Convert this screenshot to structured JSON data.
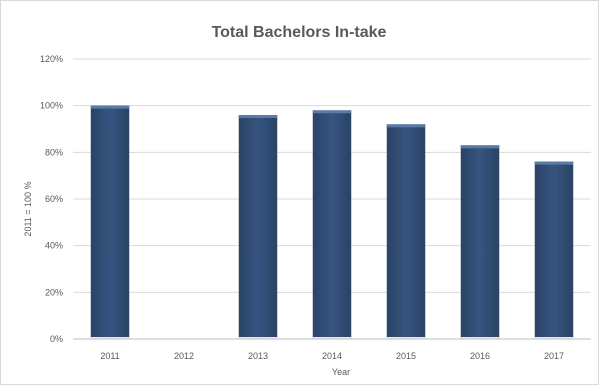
{
  "chart_data": {
    "type": "bar",
    "title": "Total Bachelors In-take",
    "xlabel": "Year",
    "ylabel": "2011 = 100 %",
    "categories": [
      "2011",
      "2012",
      "2013",
      "2014",
      "2015",
      "2016",
      "2017"
    ],
    "values": [
      100,
      null,
      96,
      98,
      92,
      83,
      76
    ],
    "ylim": [
      0,
      120
    ],
    "yticks": [
      0,
      20,
      40,
      60,
      80,
      100,
      120
    ],
    "ytick_labels": [
      "0%",
      "20%",
      "40%",
      "60%",
      "80%",
      "100%",
      "120%"
    ],
    "grid": true,
    "legend": "none",
    "bar_color": "#2e4a70",
    "bar_top_color": "#5a7aa6",
    "grid_color": "#d9d9d9"
  }
}
